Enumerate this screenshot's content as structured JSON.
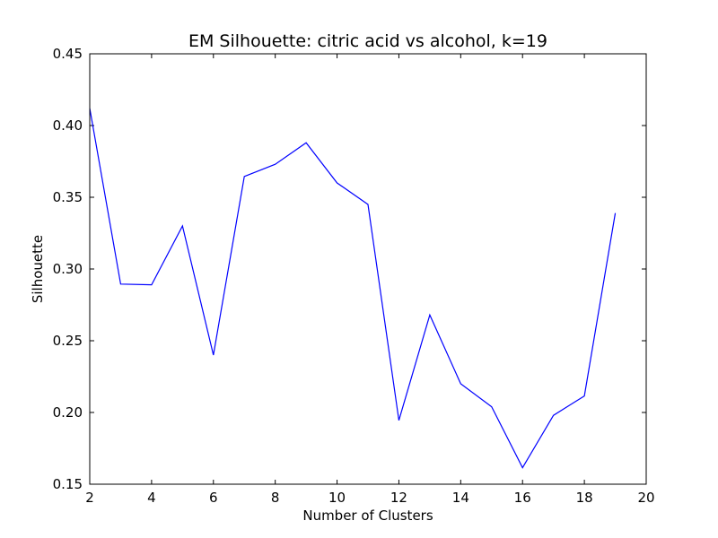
{
  "chart_data": {
    "type": "line",
    "title": "EM Silhouette: citric acid vs alcohol, k=19",
    "xlabel": "Number of Clusters",
    "ylabel": "Silhouette",
    "xlim": [
      2,
      20
    ],
    "ylim": [
      0.15,
      0.45
    ],
    "xticks": [
      2,
      4,
      6,
      8,
      10,
      12,
      14,
      16,
      18,
      20
    ],
    "yticks": [
      "0.15",
      "0.20",
      "0.25",
      "0.30",
      "0.35",
      "0.40",
      "0.45"
    ],
    "grid": false,
    "series": [
      {
        "color": "#0000ff",
        "x": [
          2,
          3,
          4,
          5,
          6,
          7,
          8,
          9,
          10,
          11,
          12,
          13,
          14,
          15,
          16,
          17,
          18,
          19
        ],
        "y": [
          0.412,
          0.2895,
          0.289,
          0.33,
          0.24,
          0.3645,
          0.373,
          0.388,
          0.36,
          0.345,
          0.1945,
          0.268,
          0.22,
          0.204,
          0.1615,
          0.198,
          0.2115,
          0.339
        ]
      }
    ]
  }
}
